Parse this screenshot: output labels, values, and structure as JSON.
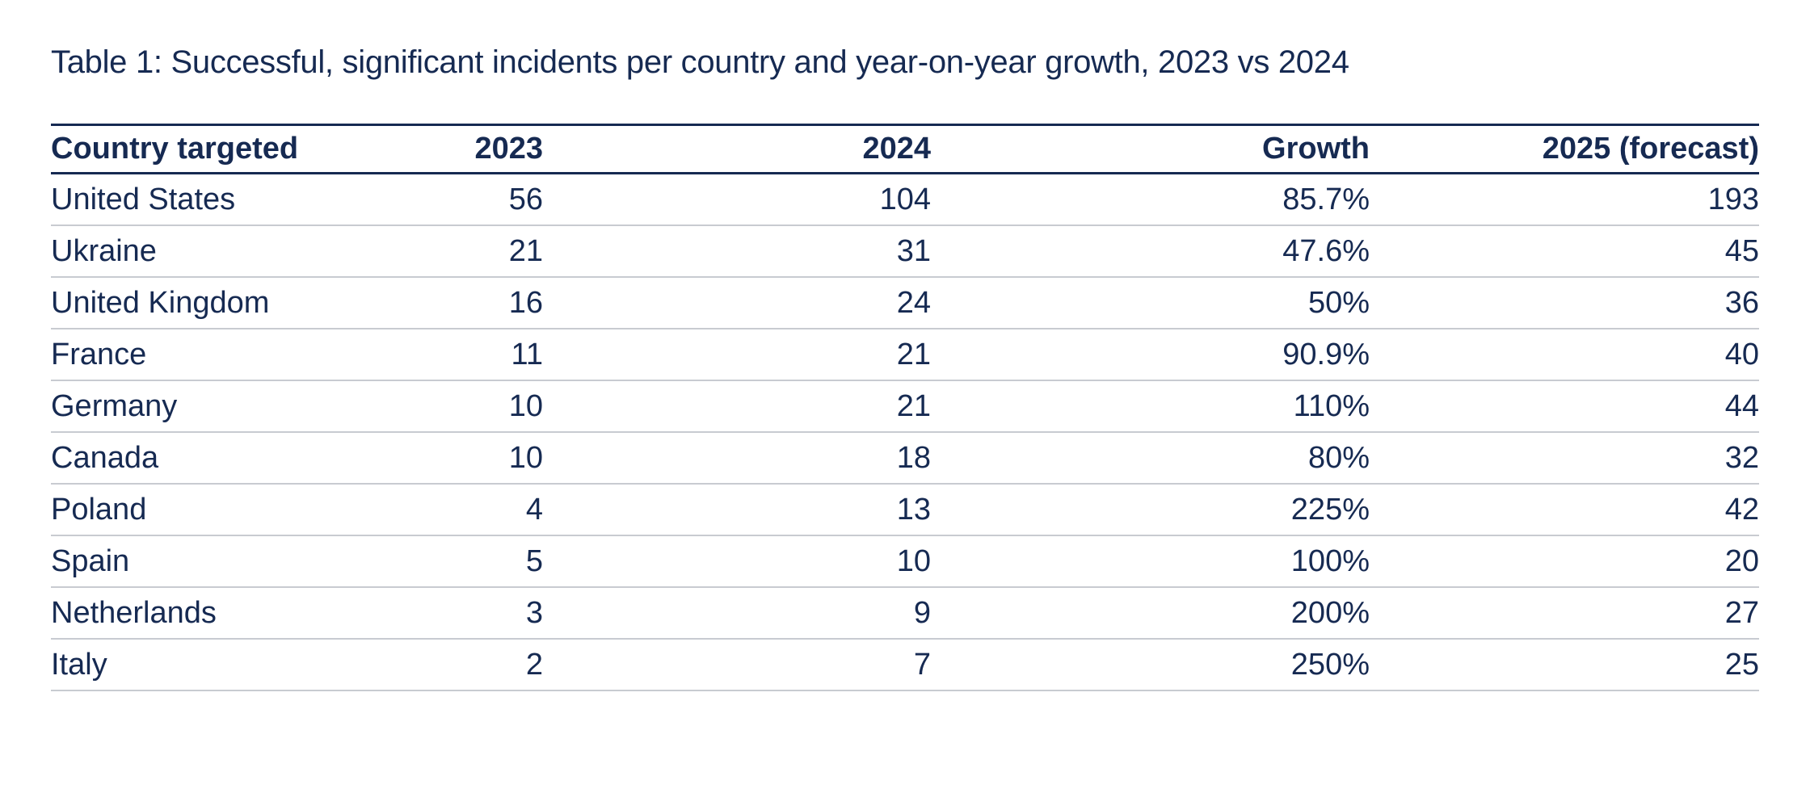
{
  "caption": "Table 1: Successful, significant incidents per country and year-on-year growth, 2023 vs 2024",
  "colors": {
    "text_navy": "#162a52",
    "header_rule": "#162a52",
    "row_divider": "#c8cbd1",
    "background": "#ffffff"
  },
  "table": {
    "columns": [
      "Country targeted",
      "2023",
      "2024",
      "Growth",
      "2025 (forecast)"
    ],
    "rows": [
      {
        "country": "United States",
        "y2023": "56",
        "y2024": "104",
        "growth": "85.7%",
        "forecast2025": "193"
      },
      {
        "country": "Ukraine",
        "y2023": "21",
        "y2024": "31",
        "growth": "47.6%",
        "forecast2025": "45"
      },
      {
        "country": "United Kingdom",
        "y2023": "16",
        "y2024": "24",
        "growth": "50%",
        "forecast2025": "36"
      },
      {
        "country": "France",
        "y2023": "11",
        "y2024": "21",
        "growth": "90.9%",
        "forecast2025": "40"
      },
      {
        "country": "Germany",
        "y2023": "10",
        "y2024": "21",
        "growth": "110%",
        "forecast2025": "44"
      },
      {
        "country": "Canada",
        "y2023": "10",
        "y2024": "18",
        "growth": "80%",
        "forecast2025": "32"
      },
      {
        "country": "Poland",
        "y2023": "4",
        "y2024": "13",
        "growth": "225%",
        "forecast2025": "42"
      },
      {
        "country": "Spain",
        "y2023": "5",
        "y2024": "10",
        "growth": "100%",
        "forecast2025": "20"
      },
      {
        "country": "Netherlands",
        "y2023": "3",
        "y2024": "9",
        "growth": "200%",
        "forecast2025": "27"
      },
      {
        "country": "Italy",
        "y2023": "2",
        "y2024": "7",
        "growth": "250%",
        "forecast2025": "25"
      }
    ]
  },
  "chart_data": {
    "type": "table",
    "title": "Table 1: Successful, significant incidents per country and year-on-year growth, 2023 vs 2024",
    "columns": [
      "Country targeted",
      "2023",
      "2024",
      "Growth",
      "2025 (forecast)"
    ],
    "rows": [
      [
        "United States",
        56,
        104,
        "85.7%",
        193
      ],
      [
        "Ukraine",
        21,
        31,
        "47.6%",
        45
      ],
      [
        "United Kingdom",
        16,
        24,
        "50%",
        36
      ],
      [
        "France",
        11,
        21,
        "90.9%",
        40
      ],
      [
        "Germany",
        10,
        21,
        "110%",
        44
      ],
      [
        "Canada",
        10,
        18,
        "80%",
        32
      ],
      [
        "Poland",
        4,
        13,
        "225%",
        42
      ],
      [
        "Spain",
        5,
        10,
        "100%",
        20
      ],
      [
        "Netherlands",
        3,
        9,
        "200%",
        27
      ],
      [
        "Italy",
        2,
        7,
        "250%",
        25
      ]
    ]
  }
}
